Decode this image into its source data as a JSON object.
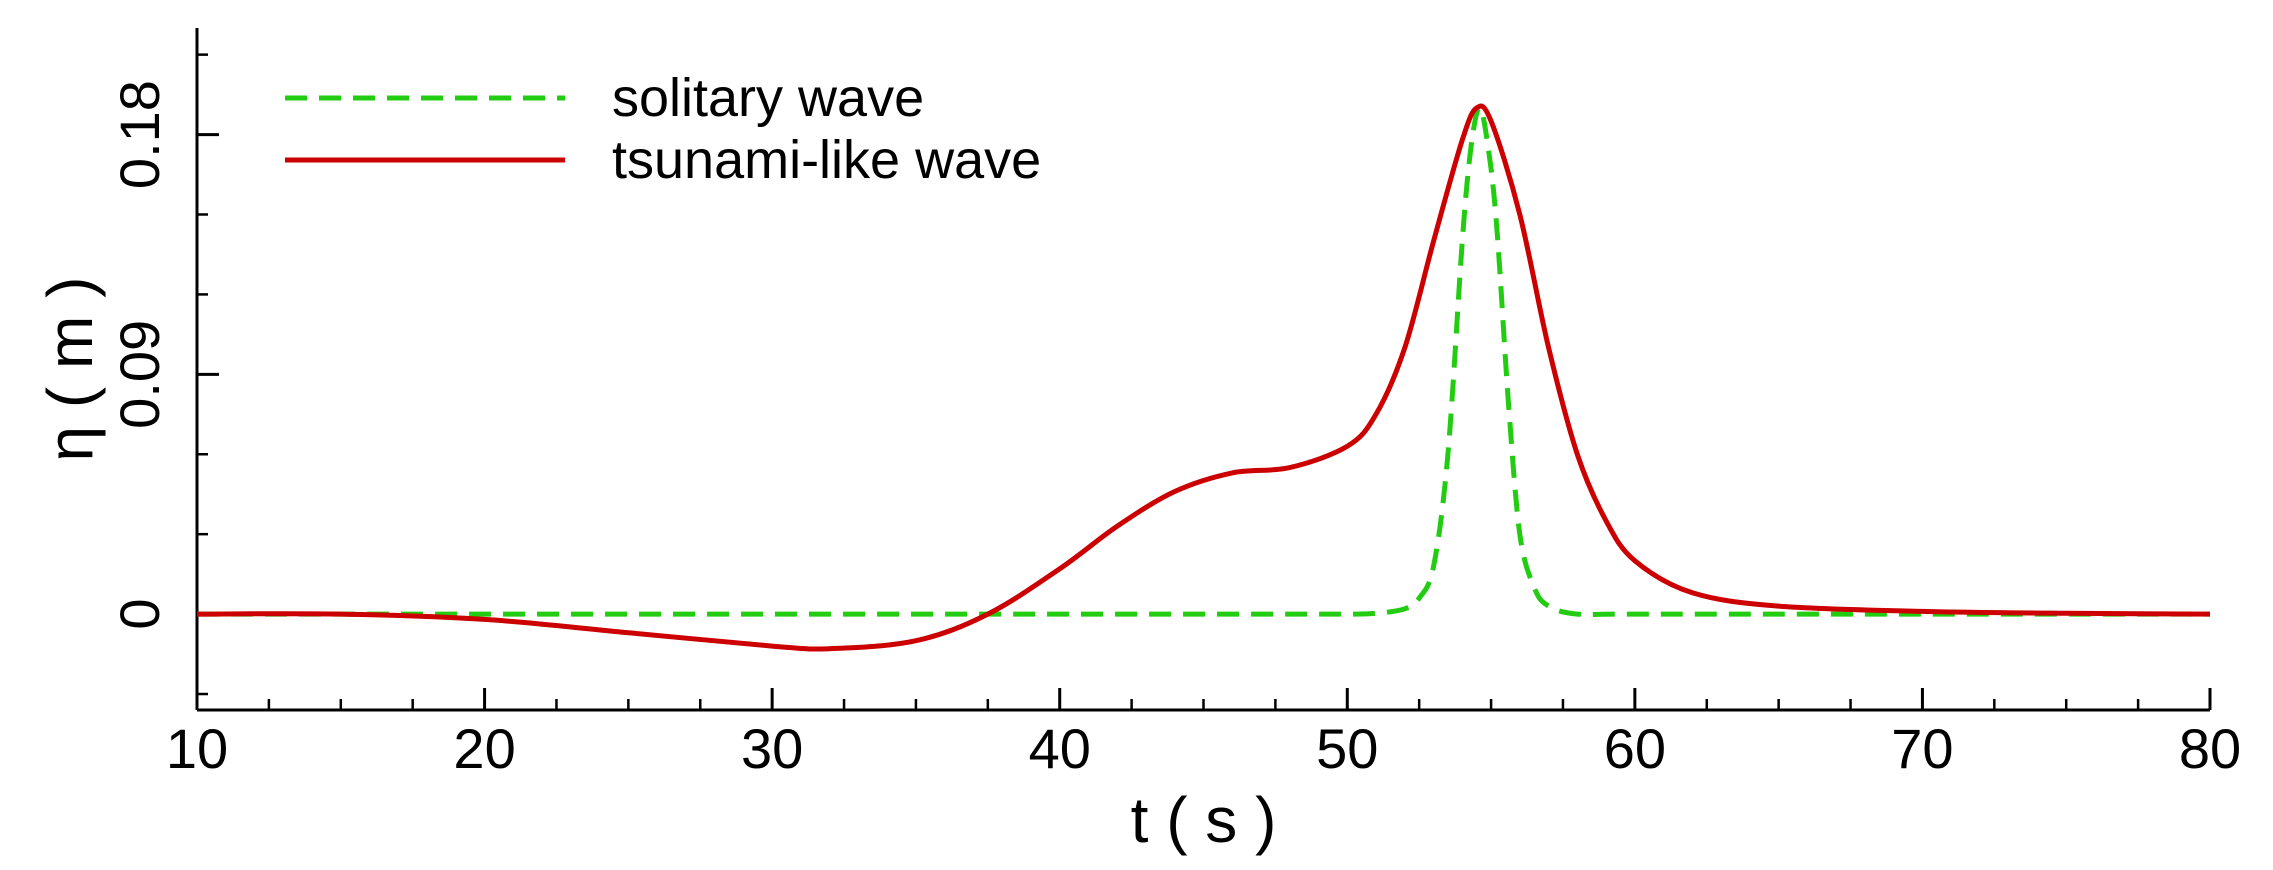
{
  "chart_data": {
    "type": "line",
    "xlabel": "t ( s )",
    "ylabel": "η ( m )",
    "xlim": [
      10,
      80
    ],
    "ylim": [
      -0.036,
      0.22
    ],
    "x_ticks": [
      10,
      20,
      30,
      40,
      50,
      60,
      70,
      80
    ],
    "y_ticks": [
      0,
      0.09,
      0.18
    ],
    "x_tick_labels": [
      "10",
      "20",
      "30",
      "40",
      "50",
      "60",
      "70",
      "80"
    ],
    "y_tick_labels": [
      "0",
      "0.09",
      "0.18"
    ],
    "legend_position": "top-left",
    "grid": false,
    "series": [
      {
        "name": "solitary wave",
        "color": "#22cc11",
        "style": "dashed",
        "x": [
          10,
          20,
          30,
          40,
          48,
          50,
          51,
          52,
          52.5,
          53,
          53.5,
          54,
          54.3,
          54.6,
          54.9,
          55.2,
          55.6,
          56,
          56.5,
          57,
          58,
          60,
          70,
          80
        ],
        "y": [
          0,
          0,
          0,
          0,
          0,
          0,
          0.0003,
          0.002,
          0.006,
          0.018,
          0.06,
          0.14,
          0.175,
          0.19,
          0.175,
          0.145,
          0.08,
          0.03,
          0.01,
          0.003,
          0,
          0,
          0,
          0
        ]
      },
      {
        "name": "tsunami-like wave",
        "color": "#cc0000",
        "style": "solid",
        "x": [
          10,
          15,
          20,
          25,
          30,
          32,
          35,
          37.5,
          40,
          42,
          44,
          46,
          48,
          50,
          51,
          52,
          53,
          54,
          54.5,
          55,
          56,
          57,
          58,
          59,
          60,
          62,
          65,
          70,
          75,
          80
        ],
        "y": [
          0,
          0,
          -0.002,
          -0.007,
          -0.012,
          -0.013,
          -0.01,
          0,
          0.017,
          0.033,
          0.046,
          0.053,
          0.055,
          0.063,
          0.075,
          0.1,
          0.14,
          0.178,
          0.19,
          0.185,
          0.15,
          0.1,
          0.06,
          0.035,
          0.02,
          0.008,
          0.003,
          0.001,
          0.0003,
          0
        ]
      }
    ]
  }
}
